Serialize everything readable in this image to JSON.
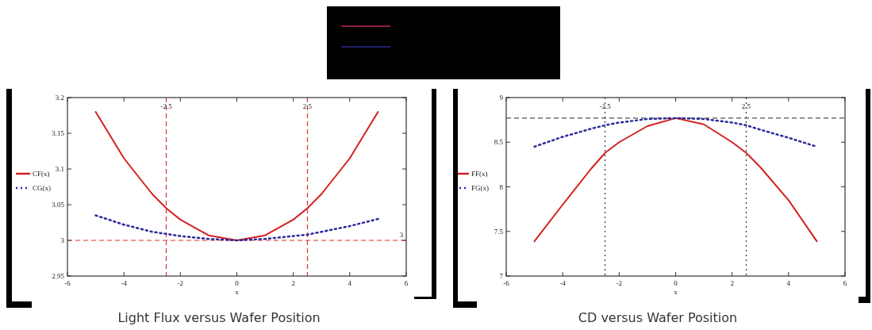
{
  "chart_data": [
    {
      "type": "line",
      "title": "Light Flux versus Wafer Position",
      "xlabel": "x",
      "x": [
        -5,
        -4,
        -3,
        -2.5,
        -2,
        -1,
        0,
        1,
        2,
        2.5,
        3,
        4,
        5
      ],
      "xlim": [
        -6,
        6
      ],
      "xticks": [
        -6,
        -4,
        -2,
        0,
        2,
        4,
        6
      ],
      "ylim": [
        2.95,
        3.2
      ],
      "yticks": [
        2.95,
        3,
        3.05,
        3.1,
        3.15,
        3.2
      ],
      "legend": "left",
      "grid": false,
      "series": [
        {
          "name": "CF(x)",
          "color": "#d42020",
          "line_style": "solid",
          "values": [
            3.18,
            3.115,
            3.065,
            3.045,
            3.029,
            3.007,
            3.0,
            3.007,
            3.029,
            3.045,
            3.065,
            3.115,
            3.18
          ]
        },
        {
          "name": "CG(x)",
          "color": "#2a2a9a",
          "line_style": "dotted",
          "values": [
            3.035,
            3.022,
            3.012,
            3.009,
            3.006,
            3.002,
            3.0,
            3.002,
            3.006,
            3.008,
            3.012,
            3.02,
            3.03
          ]
        }
      ],
      "ref_lines": [
        {
          "axis": "x",
          "value": -2.5,
          "label": "-2.5",
          "color": "#e03030",
          "line_style": "dashed"
        },
        {
          "axis": "x",
          "value": 2.5,
          "label": "2.5",
          "color": "#e03030",
          "line_style": "dashed"
        },
        {
          "axis": "y",
          "value": 3,
          "label": "3",
          "color": "#e03030",
          "line_style": "dashed"
        }
      ]
    },
    {
      "type": "line",
      "title": "CD versus Wafer Position",
      "xlabel": "x",
      "x": [
        -5,
        -4,
        -3,
        -2.5,
        -2,
        -1,
        0,
        1,
        2,
        2.5,
        3,
        4,
        5
      ],
      "xlim": [
        -6,
        6
      ],
      "xticks": [
        -6,
        -4,
        -2,
        0,
        2,
        4,
        6
      ],
      "ylim": [
        7,
        9
      ],
      "yticks": [
        7,
        7.5,
        8,
        8.5,
        9
      ],
      "legend": "left",
      "grid": false,
      "series": [
        {
          "name": "FF(x)",
          "color": "#d42020",
          "line_style": "solid",
          "values": [
            7.39,
            7.8,
            8.2,
            8.38,
            8.5,
            8.68,
            8.77,
            8.7,
            8.5,
            8.38,
            8.22,
            7.85,
            7.39
          ]
        },
        {
          "name": "FG(x)",
          "color": "#2a2a9a",
          "line_style": "dotted",
          "values": [
            8.45,
            8.56,
            8.65,
            8.69,
            8.72,
            8.76,
            8.77,
            8.76,
            8.72,
            8.69,
            8.64,
            8.55,
            8.45
          ]
        }
      ],
      "ref_lines": [
        {
          "axis": "x",
          "value": -2.5,
          "label": "-2.5",
          "color": "#333333",
          "line_style": "dotted"
        },
        {
          "axis": "x",
          "value": 2.5,
          "label": "2.5",
          "color": "#333333",
          "line_style": "dotted"
        },
        {
          "axis": "y",
          "value": 8.77,
          "label": null,
          "color": "#555555",
          "line_style": "dashed"
        }
      ]
    }
  ]
}
